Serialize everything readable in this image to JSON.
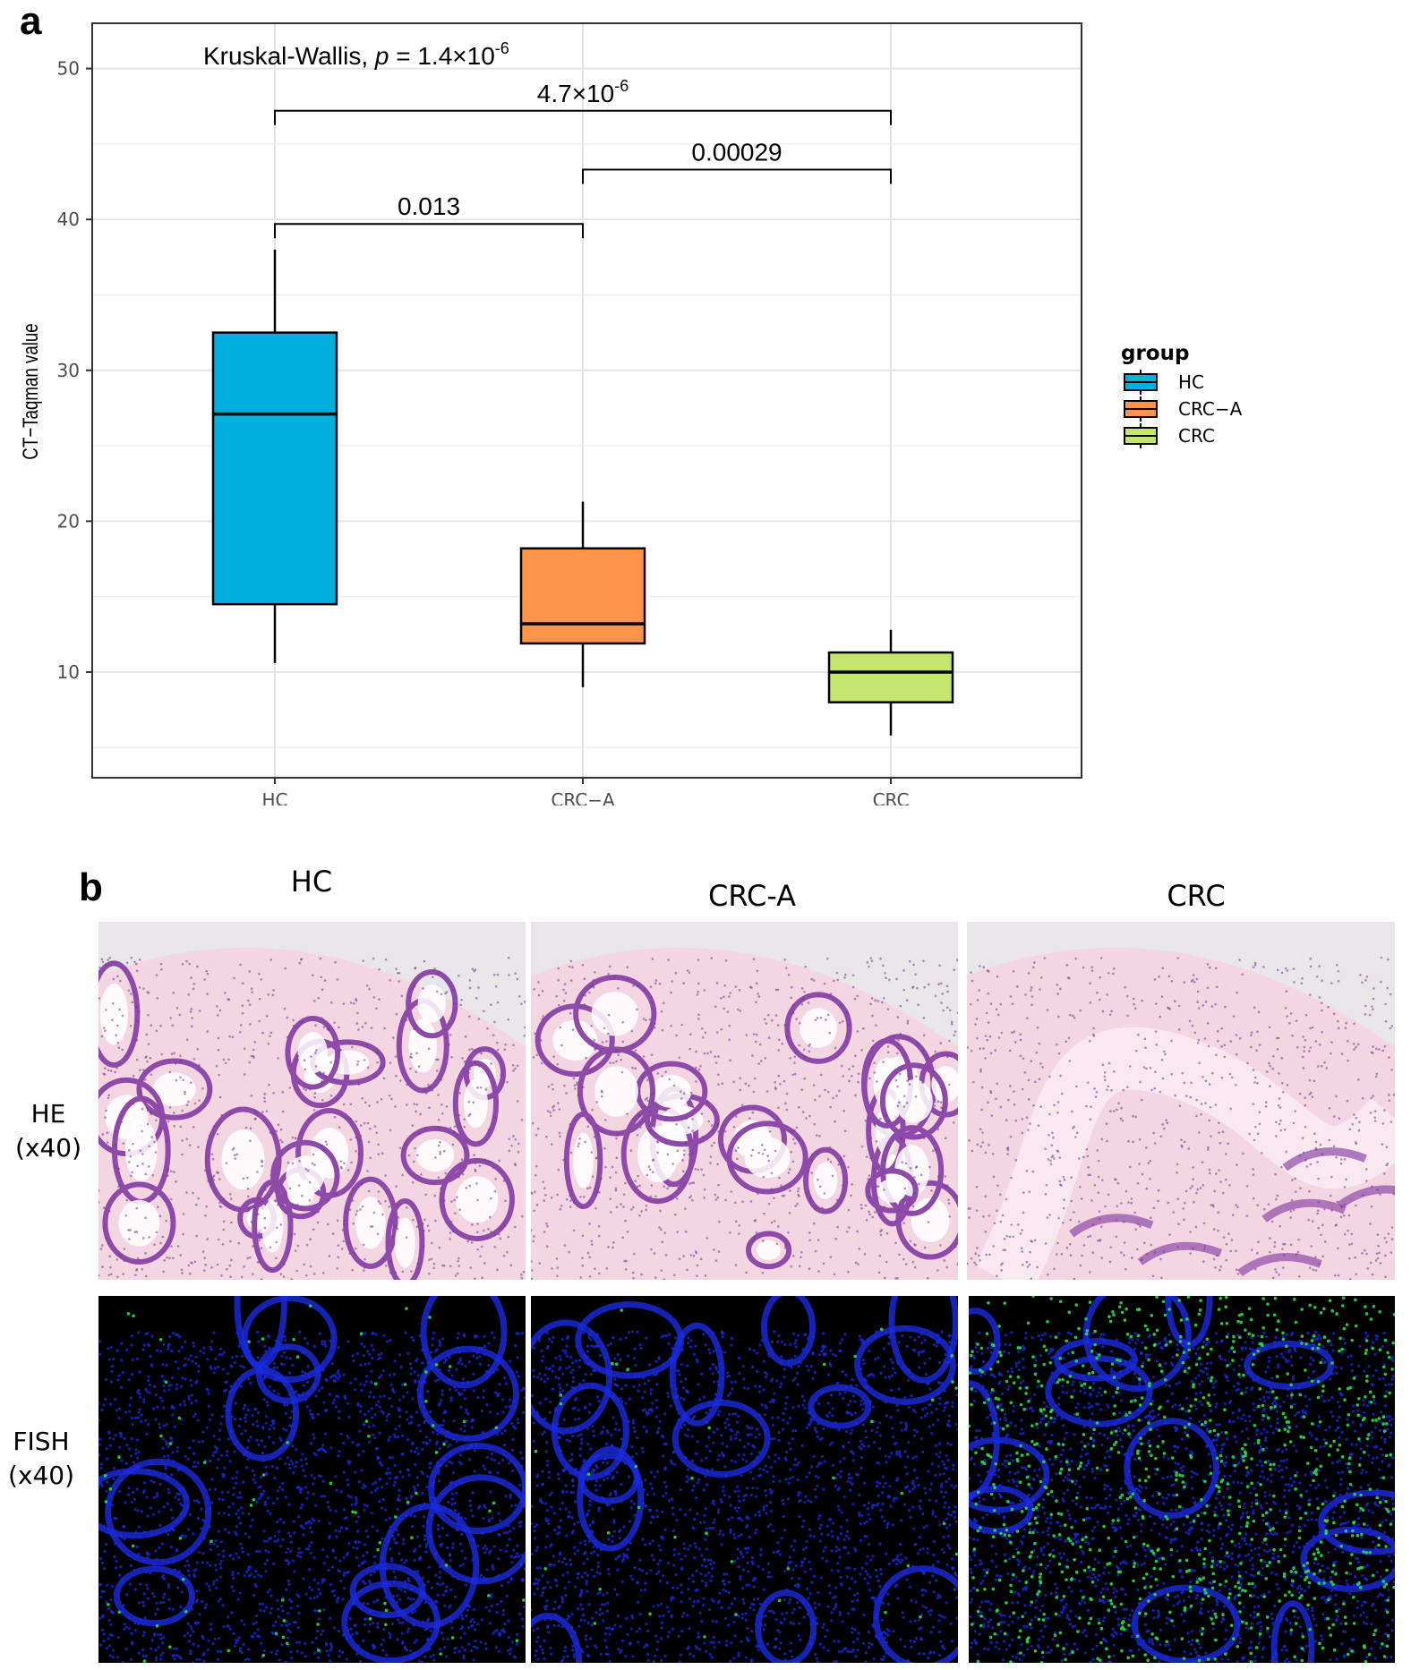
{
  "panels": {
    "a_label": "a",
    "b_label": "b"
  },
  "chart_data": {
    "type": "boxplot",
    "title": "",
    "xlabel": "",
    "ylabel": "CT−Taqman value",
    "ylim": [
      3,
      53
    ],
    "yticks": [
      10,
      20,
      30,
      40,
      50
    ],
    "grid": true,
    "categories": [
      "HC",
      "CRC−A",
      "CRC"
    ],
    "boxes": [
      {
        "group": "HC",
        "whisker_low": 10.6,
        "q1": 14.5,
        "median": 27.1,
        "q3": 32.5,
        "whisker_high": 38.0,
        "color": "#00AFDB"
      },
      {
        "group": "CRC−A",
        "whisker_low": 9.0,
        "q1": 11.9,
        "median": 13.2,
        "q3": 18.2,
        "whisker_high": 21.3,
        "color": "#FF944A"
      },
      {
        "group": "CRC",
        "whisker_low": 5.8,
        "q1": 8.0,
        "median": 10.0,
        "q3": 11.3,
        "whisker_high": 12.8,
        "color": "#C5E66D"
      }
    ],
    "test_label": {
      "prefix": "Kruskal-Wallis, ",
      "p_symbol": "p",
      "equals": " = ",
      "mantissa": "1.4",
      "times": "×10",
      "exponent": "-6"
    },
    "comparisons": [
      {
        "from": "HC",
        "to": "CRC−A",
        "label": "0.013",
        "y": 39.7
      },
      {
        "from": "CRC−A",
        "to": "CRC",
        "label": "0.00029",
        "y": 43.3
      },
      {
        "from": "HC",
        "to": "CRC",
        "label_mantissa": "4.7",
        "label_times": "×10",
        "label_exponent": "-6",
        "y": 47.2
      }
    ],
    "legend": {
      "title": "group",
      "position": "right",
      "entries": [
        "HC",
        "CRC−A",
        "CRC"
      ]
    }
  },
  "panel_b": {
    "columns": [
      "HC",
      "CRC-A",
      "CRC"
    ],
    "rows": [
      {
        "label_line1": "HE",
        "label_line2": "(x40)"
      },
      {
        "label_line1": "FISH",
        "label_line2": "(x40)"
      }
    ],
    "colors": {
      "he_background": "#F3D6E2",
      "he_gland": "#8E4AA8",
      "he_lumen": "#FFFFFF",
      "fish_background": "#000000",
      "fish_nuclei": "#1A2BE0",
      "fish_signal": "#2BD94A"
    }
  }
}
